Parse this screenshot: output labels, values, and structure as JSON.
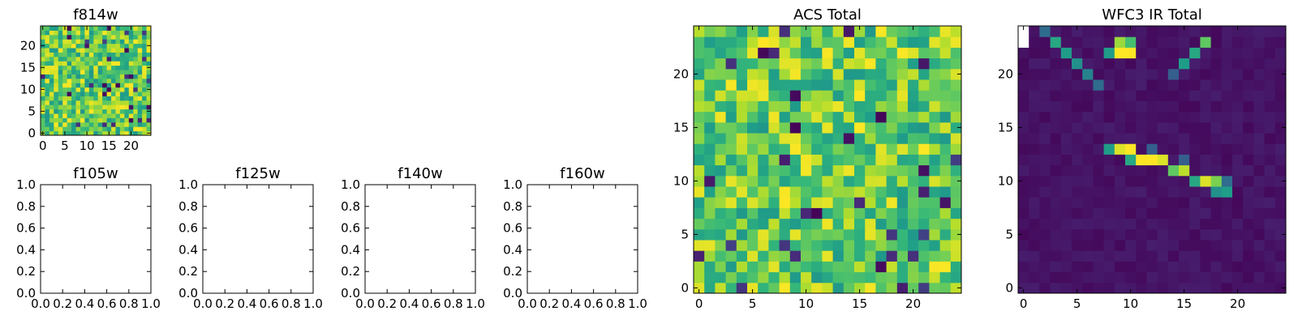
{
  "chart_data": [
    {
      "id": "f814w",
      "type": "heatmap",
      "title": "f814w",
      "colormap": "viridis",
      "pattern": "noise",
      "grid_size": [
        25,
        25
      ],
      "xlim": [
        -0.5,
        24.5
      ],
      "ylim": [
        -0.5,
        24.5
      ],
      "xticks": [
        0,
        5,
        10,
        15,
        20
      ],
      "yticks": [
        0,
        5,
        10,
        15,
        20
      ]
    },
    {
      "id": "f105w",
      "type": "scatter",
      "title": "f105w",
      "empty": true,
      "xlim": [
        0,
        1
      ],
      "ylim": [
        0,
        1
      ],
      "xticks": [
        "0.0",
        "0.2",
        "0.4",
        "0.6",
        "0.8",
        "1.0"
      ],
      "yticks": [
        "0.0",
        "0.2",
        "0.4",
        "0.6",
        "0.8",
        "1.0"
      ]
    },
    {
      "id": "f125w",
      "type": "scatter",
      "title": "f125w",
      "empty": true,
      "xlim": [
        0,
        1
      ],
      "ylim": [
        0,
        1
      ],
      "xticks": [
        "0.0",
        "0.2",
        "0.4",
        "0.6",
        "0.8",
        "1.0"
      ],
      "yticks": [
        "0.0",
        "0.2",
        "0.4",
        "0.6",
        "0.8",
        "1.0"
      ]
    },
    {
      "id": "f140w",
      "type": "scatter",
      "title": "f140w",
      "empty": true,
      "xlim": [
        0,
        1
      ],
      "ylim": [
        0,
        1
      ],
      "xticks": [
        "0.0",
        "0.2",
        "0.4",
        "0.6",
        "0.8",
        "1.0"
      ],
      "yticks": [
        "0.0",
        "0.2",
        "0.4",
        "0.6",
        "0.8",
        "1.0"
      ]
    },
    {
      "id": "f160w",
      "type": "scatter",
      "title": "f160w",
      "empty": true,
      "xlim": [
        0,
        1
      ],
      "ylim": [
        0,
        1
      ],
      "xticks": [
        "0.0",
        "0.2",
        "0.4",
        "0.6",
        "0.8",
        "1.0"
      ],
      "yticks": [
        "0.0",
        "0.2",
        "0.4",
        "0.6",
        "0.8",
        "1.0"
      ]
    },
    {
      "id": "acs-total",
      "type": "heatmap",
      "title": "ACS Total",
      "colormap": "viridis",
      "pattern": "noise",
      "grid_size": [
        25,
        25
      ],
      "xlim": [
        -0.5,
        24.5
      ],
      "ylim": [
        -0.5,
        24.5
      ],
      "xticks": [
        0,
        5,
        10,
        15,
        20
      ],
      "yticks": [
        0,
        5,
        10,
        15,
        20
      ]
    },
    {
      "id": "wfc3-ir-total",
      "type": "heatmap",
      "title": "WFC3 IR Total",
      "colormap": "viridis",
      "pattern": "streaks",
      "grid_size": [
        25,
        25
      ],
      "xlim": [
        -0.5,
        24.5
      ],
      "ylim": [
        -0.5,
        24.5
      ],
      "xticks": [
        0,
        5,
        10,
        15,
        20
      ],
      "yticks": [
        0,
        5,
        10,
        15,
        20
      ],
      "blank_cells": [
        [
          0,
          23
        ],
        [
          0,
          24
        ]
      ],
      "bright_cells": [
        {
          "x": 2,
          "y": 24,
          "v": 0.35
        },
        {
          "x": 3,
          "y": 23,
          "v": 0.6
        },
        {
          "x": 4,
          "y": 22,
          "v": 0.55
        },
        {
          "x": 5,
          "y": 21,
          "v": 0.5
        },
        {
          "x": 6,
          "y": 20,
          "v": 0.45
        },
        {
          "x": 7,
          "y": 19,
          "v": 0.35
        },
        {
          "x": 8,
          "y": 22,
          "v": 0.55
        },
        {
          "x": 9,
          "y": 23,
          "v": 0.85
        },
        {
          "x": 9,
          "y": 22,
          "v": 1.0
        },
        {
          "x": 10,
          "y": 22,
          "v": 1.0
        },
        {
          "x": 10,
          "y": 23,
          "v": 0.7
        },
        {
          "x": 15,
          "y": 21,
          "v": 0.55
        },
        {
          "x": 16,
          "y": 22,
          "v": 0.6
        },
        {
          "x": 17,
          "y": 23,
          "v": 0.75
        },
        {
          "x": 14,
          "y": 20,
          "v": 0.3
        },
        {
          "x": 8,
          "y": 13,
          "v": 0.55
        },
        {
          "x": 9,
          "y": 13,
          "v": 0.95
        },
        {
          "x": 10,
          "y": 13,
          "v": 1.0
        },
        {
          "x": 10,
          "y": 12,
          "v": 0.6
        },
        {
          "x": 11,
          "y": 12,
          "v": 1.0
        },
        {
          "x": 12,
          "y": 12,
          "v": 1.0
        },
        {
          "x": 13,
          "y": 12,
          "v": 0.95
        },
        {
          "x": 14,
          "y": 11,
          "v": 0.75
        },
        {
          "x": 15,
          "y": 11,
          "v": 0.9
        },
        {
          "x": 16,
          "y": 10,
          "v": 0.6
        },
        {
          "x": 17,
          "y": 10,
          "v": 0.95
        },
        {
          "x": 18,
          "y": 10,
          "v": 0.8
        },
        {
          "x": 18,
          "y": 9,
          "v": 0.5
        },
        {
          "x": 19,
          "y": 9,
          "v": 0.55
        },
        {
          "x": 19,
          "y": 10,
          "v": 0.35
        },
        {
          "x": 12,
          "y": 13,
          "v": 0.3
        },
        {
          "x": 15,
          "y": 12,
          "v": 0.3
        }
      ]
    }
  ]
}
